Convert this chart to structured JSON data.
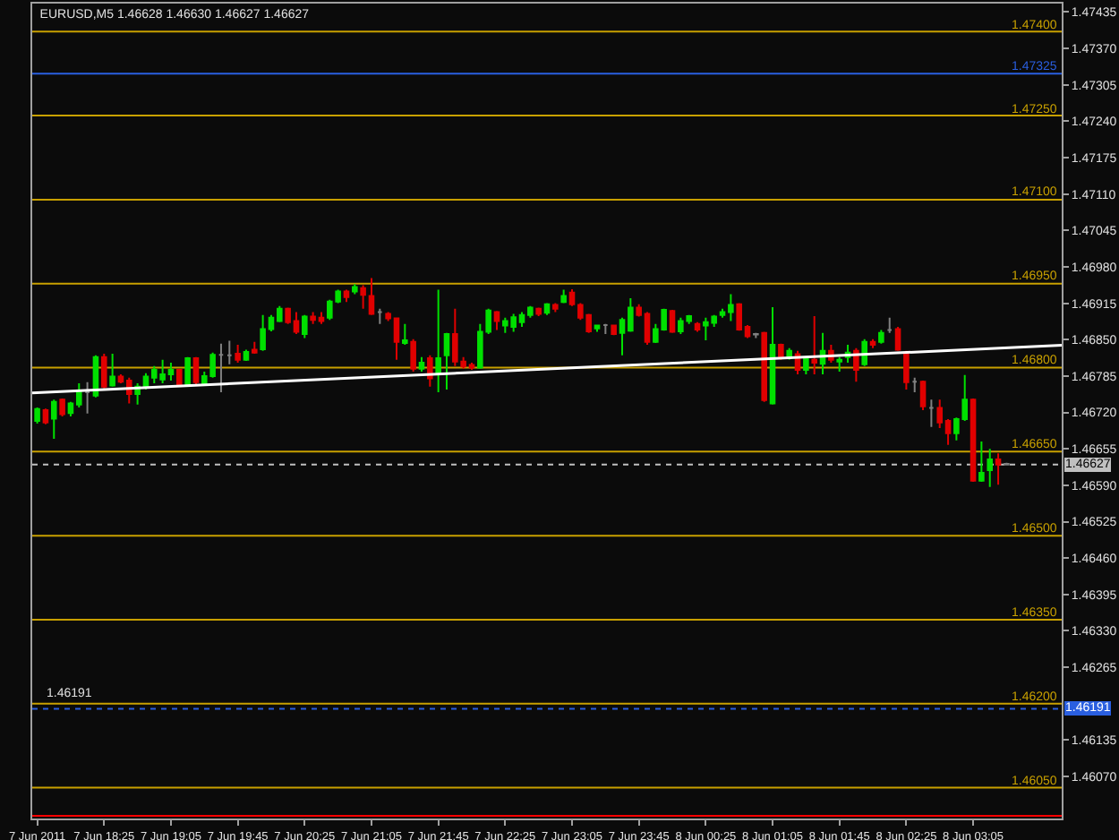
{
  "chart_data": {
    "type": "candlestick",
    "title": "EURUSD,M5 1.46628 1.46630 1.46627 1.46627",
    "x": [
      "2011-06-07T17:45",
      "2011-06-07T17:50",
      "2011-06-07T17:55",
      "2011-06-07T18:00",
      "2011-06-07T18:05",
      "2011-06-07T18:10",
      "2011-06-07T18:15",
      "2011-06-07T18:20",
      "2011-06-07T18:25",
      "2011-06-07T18:30",
      "2011-06-07T18:35",
      "2011-06-07T18:40",
      "2011-06-07T18:45",
      "2011-06-07T18:50",
      "2011-06-07T18:55",
      "2011-06-07T19:00",
      "2011-06-07T19:05",
      "2011-06-07T19:10",
      "2011-06-07T19:15",
      "2011-06-07T19:20",
      "2011-06-07T19:25",
      "2011-06-07T19:30",
      "2011-06-07T19:35",
      "2011-06-07T19:40",
      "2011-06-07T19:45",
      "2011-06-07T19:50",
      "2011-06-07T19:55",
      "2011-06-07T20:00",
      "2011-06-07T20:05",
      "2011-06-07T20:10",
      "2011-06-07T20:15",
      "2011-06-07T20:20",
      "2011-06-07T20:25",
      "2011-06-07T20:30",
      "2011-06-07T20:35",
      "2011-06-07T20:40",
      "2011-06-07T20:45",
      "2011-06-07T20:50",
      "2011-06-07T20:55",
      "2011-06-07T21:00",
      "2011-06-07T21:05",
      "2011-06-07T21:10",
      "2011-06-07T21:15",
      "2011-06-07T21:20",
      "2011-06-07T21:25",
      "2011-06-07T21:30",
      "2011-06-07T21:35",
      "2011-06-07T21:40",
      "2011-06-07T21:45",
      "2011-06-07T21:50",
      "2011-06-07T21:55",
      "2011-06-07T22:00",
      "2011-06-07T22:05",
      "2011-06-07T22:10",
      "2011-06-07T22:15",
      "2011-06-07T22:20",
      "2011-06-07T22:25",
      "2011-06-07T22:30",
      "2011-06-07T22:35",
      "2011-06-07T22:40",
      "2011-06-07T22:45",
      "2011-06-07T22:50",
      "2011-06-07T22:55",
      "2011-06-07T23:00",
      "2011-06-07T23:05",
      "2011-06-07T23:10",
      "2011-06-07T23:15",
      "2011-06-07T23:20",
      "2011-06-07T23:25",
      "2011-06-07T23:30",
      "2011-06-07T23:35",
      "2011-06-07T23:40",
      "2011-06-07T23:45",
      "2011-06-07T23:50",
      "2011-06-07T23:55",
      "2011-06-08T00:00",
      "2011-06-08T00:05",
      "2011-06-08T00:10",
      "2011-06-08T00:15",
      "2011-06-08T00:20",
      "2011-06-08T00:25",
      "2011-06-08T00:30",
      "2011-06-08T00:35",
      "2011-06-08T00:40",
      "2011-06-08T00:45",
      "2011-06-08T00:50",
      "2011-06-08T00:55",
      "2011-06-08T01:00",
      "2011-06-08T01:05",
      "2011-06-08T01:10",
      "2011-06-08T01:15",
      "2011-06-08T01:20",
      "2011-06-08T01:25",
      "2011-06-08T01:30",
      "2011-06-08T01:35",
      "2011-06-08T01:40",
      "2011-06-08T01:45",
      "2011-06-08T01:50",
      "2011-06-08T01:55",
      "2011-06-08T02:00",
      "2011-06-08T02:05",
      "2011-06-08T02:10",
      "2011-06-08T02:15",
      "2011-06-08T02:20",
      "2011-06-08T02:25",
      "2011-06-08T02:30",
      "2011-06-08T02:35",
      "2011-06-08T02:40",
      "2011-06-08T02:45",
      "2011-06-08T02:50",
      "2011-06-08T02:55",
      "2011-06-08T03:00",
      "2011-06-08T03:05",
      "2011-06-08T03:10",
      "2011-06-08T03:15",
      "2011-06-08T03:20",
      "2011-06-08T03:25"
    ],
    "ohlc": [
      [
        1.46705,
        1.46729,
        1.467,
        1.46726
      ],
      [
        1.46724,
        1.46727,
        1.46699,
        1.46702
      ],
      [
        1.46709,
        1.46743,
        1.46673,
        1.46739
      ],
      [
        1.46743,
        1.46745,
        1.46713,
        1.46717
      ],
      [
        1.46719,
        1.46739,
        1.46713,
        1.46736
      ],
      [
        1.46734,
        1.46772,
        1.46729,
        1.46756
      ],
      [
        1.46756,
        1.46774,
        1.46718,
        1.46756
      ],
      [
        1.4675,
        1.46822,
        1.46747,
        1.46819
      ],
      [
        1.46819,
        1.46825,
        1.46763,
        1.46766
      ],
      [
        1.46768,
        1.46825,
        1.46766,
        1.46784
      ],
      [
        1.46784,
        1.46788,
        1.46772,
        1.46775
      ],
      [
        1.46777,
        1.46782,
        1.46736,
        1.46753
      ],
      [
        1.46753,
        1.46772,
        1.46734,
        1.46766
      ],
      [
        1.46766,
        1.4679,
        1.46761,
        1.46784
      ],
      [
        1.46782,
        1.46803,
        1.46772,
        1.46796
      ],
      [
        1.46779,
        1.46814,
        1.46772,
        1.46788
      ],
      [
        1.46788,
        1.46809,
        1.46777,
        1.46796
      ],
      [
        1.46796,
        1.46798,
        1.46766,
        1.46769
      ],
      [
        1.46769,
        1.46819,
        1.46766,
        1.46817
      ],
      [
        1.46817,
        1.46819,
        1.4677,
        1.46774
      ],
      [
        1.46772,
        1.46793,
        1.46768,
        1.46785
      ],
      [
        1.46785,
        1.46827,
        1.46782,
        1.46823
      ],
      [
        1.46823,
        1.46843,
        1.46756,
        1.46823
      ],
      [
        1.46822,
        1.46848,
        1.46806,
        1.46822
      ],
      [
        1.46825,
        1.46841,
        1.46809,
        1.46814
      ],
      [
        1.46814,
        1.46832,
        1.46812,
        1.46828
      ],
      [
        1.46832,
        1.46846,
        1.46825,
        1.46827
      ],
      [
        1.46833,
        1.46894,
        1.4683,
        1.46869
      ],
      [
        1.46869,
        1.46894,
        1.46865,
        1.46889
      ],
      [
        1.46883,
        1.4691,
        1.46881,
        1.46905
      ],
      [
        1.46905,
        1.46907,
        1.46878,
        1.46881
      ],
      [
        1.46883,
        1.46899,
        1.4686,
        1.46864
      ],
      [
        1.4686,
        1.46894,
        1.46853,
        1.46891
      ],
      [
        1.46891,
        1.46899,
        1.46878,
        1.46885
      ],
      [
        1.46889,
        1.46899,
        1.46878,
        1.46883
      ],
      [
        1.46889,
        1.46921,
        1.46885,
        1.46918
      ],
      [
        1.46918,
        1.46939,
        1.46915,
        1.46936
      ],
      [
        1.46936,
        1.46939,
        1.46917,
        1.46926
      ],
      [
        1.46936,
        1.46949,
        1.46931,
        1.46944
      ],
      [
        1.46942,
        1.46947,
        1.46905,
        1.4693
      ],
      [
        1.46928,
        1.4696,
        1.46894,
        1.46896
      ],
      [
        1.46899,
        1.46905,
        1.46878,
        1.46899
      ],
      [
        1.46896,
        1.46899,
        1.46883,
        1.46888
      ],
      [
        1.46888,
        1.46889,
        1.46814,
        1.46846
      ],
      [
        1.46844,
        1.46878,
        1.46841,
        1.46849
      ],
      [
        1.46846,
        1.46851,
        1.46793,
        1.46798
      ],
      [
        1.46798,
        1.46819,
        1.46793,
        1.46809
      ],
      [
        1.46817,
        1.46822,
        1.46766,
        1.46781
      ],
      [
        1.4679,
        1.46939,
        1.46756,
        1.46817
      ],
      [
        1.46822,
        1.46862,
        1.46761,
        1.4686
      ],
      [
        1.4686,
        1.46905,
        1.46803,
        1.46811
      ],
      [
        1.46811,
        1.46819,
        1.46798,
        1.46802
      ],
      [
        1.46805,
        1.46809,
        1.46796,
        1.468
      ],
      [
        1.468,
        1.46878,
        1.46798,
        1.46864
      ],
      [
        1.46864,
        1.46905,
        1.4686,
        1.46902
      ],
      [
        1.46899,
        1.46901,
        1.46867,
        1.46883
      ],
      [
        1.46875,
        1.46889,
        1.46862,
        1.46883
      ],
      [
        1.46873,
        1.46896,
        1.46864,
        1.4689
      ],
      [
        1.46881,
        1.46899,
        1.46873,
        1.46894
      ],
      [
        1.46894,
        1.4691,
        1.46889,
        1.46907
      ],
      [
        1.46905,
        1.46907,
        1.46892,
        1.46896
      ],
      [
        1.46898,
        1.46915,
        1.46894,
        1.46913
      ],
      [
        1.46912,
        1.46915,
        1.46899,
        1.46905
      ],
      [
        1.46917,
        1.46939,
        1.46915,
        1.46928
      ],
      [
        1.46934,
        1.4694,
        1.4691,
        1.46913
      ],
      [
        1.46912,
        1.46915,
        1.46885,
        1.46889
      ],
      [
        1.46894,
        1.46896,
        1.46862,
        1.46865
      ],
      [
        1.4687,
        1.46876,
        1.46864,
        1.46875
      ],
      [
        1.46876,
        1.46878,
        1.4686,
        1.46876
      ],
      [
        1.46875,
        1.46877,
        1.46858,
        1.4686
      ],
      [
        1.46862,
        1.46889,
        1.46822,
        1.46885
      ],
      [
        1.46866,
        1.46924,
        1.46864,
        1.46907
      ],
      [
        1.46907,
        1.46913,
        1.46891,
        1.46894
      ],
      [
        1.46896,
        1.46899,
        1.46841,
        1.46846
      ],
      [
        1.46846,
        1.46878,
        1.46844,
        1.46869
      ],
      [
        1.46868,
        1.46905,
        1.46866,
        1.46903
      ],
      [
        1.46901,
        1.46903,
        1.46862,
        1.46864
      ],
      [
        1.46865,
        1.46889,
        1.4686,
        1.46883
      ],
      [
        1.46883,
        1.46894,
        1.46878,
        1.46892
      ],
      [
        1.46878,
        1.46881,
        1.46864,
        1.46868
      ],
      [
        1.46875,
        1.46889,
        1.46849,
        1.46881
      ],
      [
        1.4688,
        1.46894,
        1.46873,
        1.46891
      ],
      [
        1.46894,
        1.46905,
        1.46889,
        1.46899
      ],
      [
        1.46899,
        1.46931,
        1.46883,
        1.46912
      ],
      [
        1.46913,
        1.46915,
        1.46866,
        1.46868
      ],
      [
        1.46873,
        1.46876,
        1.46853,
        1.46856
      ],
      [
        1.4686,
        1.46862,
        1.46853,
        1.46859
      ],
      [
        1.46862,
        1.46864,
        1.46739,
        1.46742
      ],
      [
        1.46736,
        1.46908,
        1.46734,
        1.46841
      ],
      [
        1.46841,
        1.46843,
        1.46814,
        1.46817
      ],
      [
        1.46817,
        1.46835,
        1.46814,
        1.4683
      ],
      [
        1.46824,
        1.4683,
        1.46788,
        1.46796
      ],
      [
        1.46796,
        1.46819,
        1.46788,
        1.46816
      ],
      [
        1.46814,
        1.46892,
        1.46788,
        1.46809
      ],
      [
        1.46807,
        1.46862,
        1.46788,
        1.4683
      ],
      [
        1.4683,
        1.46841,
        1.46809,
        1.46814
      ],
      [
        1.46811,
        1.46819,
        1.46793,
        1.46814
      ],
      [
        1.46819,
        1.46841,
        1.46809,
        1.46827
      ],
      [
        1.4683,
        1.46835,
        1.46775,
        1.46796
      ],
      [
        1.46806,
        1.46851,
        1.46803,
        1.46846
      ],
      [
        1.46846,
        1.46851,
        1.46835,
        1.46841
      ],
      [
        1.46846,
        1.46867,
        1.46843,
        1.46862
      ],
      [
        1.46867,
        1.46889,
        1.46862,
        1.46867
      ],
      [
        1.46869,
        1.46873,
        1.4683,
        1.46832
      ],
      [
        1.46825,
        1.4683,
        1.46761,
        1.46774
      ],
      [
        1.46775,
        1.46782,
        1.46756,
        1.46775
      ],
      [
        1.46775,
        1.46777,
        1.46724,
        1.46731
      ],
      [
        1.46728,
        1.46743,
        1.46694,
        1.46728
      ],
      [
        1.46728,
        1.46743,
        1.46692,
        1.46702
      ],
      [
        1.46705,
        1.46708,
        1.46662,
        1.46683
      ],
      [
        1.46683,
        1.46711,
        1.4667,
        1.46708
      ],
      [
        1.46708,
        1.46787,
        1.46705,
        1.46743
      ],
      [
        1.46743,
        1.46745,
        1.46596,
        1.46598
      ],
      [
        1.46598,
        1.46668,
        1.46596,
        1.46612
      ],
      [
        1.46617,
        1.46655,
        1.46587,
        1.46636
      ],
      [
        1.46636,
        1.46647,
        1.46591,
        1.46627
      ],
      [
        1.46628,
        1.4663,
        1.46627,
        1.46627
      ]
    ],
    "colors": [
      "#00e000",
      "#e00000",
      "#00e000",
      "#e00000",
      "#00e000",
      "#00e000",
      "#808080",
      "#00e000",
      "#e00000",
      "#00e000",
      "#e00000",
      "#e00000",
      "#00e000",
      "#00e000",
      "#00e000",
      "#00e000",
      "#00e000",
      "#e00000",
      "#00e000",
      "#e00000",
      "#00e000",
      "#00e000",
      "#808080",
      "#808080",
      "#e00000",
      "#00e000",
      "#e00000",
      "#00e000",
      "#00e000",
      "#00e000",
      "#e00000",
      "#e00000",
      "#00e000",
      "#e00000",
      "#e00000",
      "#00e000",
      "#00e000",
      "#e00000",
      "#00e000",
      "#e00000",
      "#e00000",
      "#808080",
      "#e00000",
      "#e00000",
      "#00e000",
      "#e00000",
      "#00e000",
      "#e00000",
      "#00e000",
      "#00e000",
      "#e00000",
      "#e00000",
      "#e00000",
      "#00e000",
      "#00e000",
      "#e00000",
      "#00e000",
      "#00e000",
      "#00e000",
      "#00e000",
      "#e00000",
      "#00e000",
      "#e00000",
      "#00e000",
      "#e00000",
      "#e00000",
      "#e00000",
      "#00e000",
      "#808080",
      "#e00000",
      "#00e000",
      "#00e000",
      "#e00000",
      "#e00000",
      "#00e000",
      "#00e000",
      "#e00000",
      "#00e000",
      "#00e000",
      "#e00000",
      "#00e000",
      "#00e000",
      "#00e000",
      "#00e000",
      "#e00000",
      "#e00000",
      "#808080",
      "#e00000",
      "#00e000",
      "#e00000",
      "#00e000",
      "#e00000",
      "#00e000",
      "#e00000",
      "#00e000",
      "#e00000",
      "#00e000",
      "#00e000",
      "#e00000",
      "#00e000",
      "#e00000",
      "#00e000",
      "#808080",
      "#e00000",
      "#e00000",
      "#808080",
      "#e00000",
      "#808080",
      "#e00000",
      "#e00000",
      "#00e000",
      "#00e000",
      "#e00000",
      "#00e000",
      "#00e000",
      "#e00000",
      "#808080"
    ],
    "series": [
      {
        "type": "line",
        "color": "#ffffff",
        "x": [
          "2011-06-07T17:42",
          "2011-06-08T03:58"
        ],
        "values": [
          1.46755,
          1.4684
        ]
      }
    ],
    "xlim": [
      "2011-06-07T17:42",
      "2011-06-08T03:58"
    ],
    "xticks": [
      {
        "value": "2011-06-07T17:45",
        "label": "7 Jun 2011"
      },
      {
        "value": "2011-06-07T18:25",
        "label": "7 Jun 18:25"
      },
      {
        "value": "2011-06-07T19:05",
        "label": "7 Jun 19:05"
      },
      {
        "value": "2011-06-07T19:45",
        "label": "7 Jun 19:45"
      },
      {
        "value": "2011-06-07T20:25",
        "label": "7 Jun 20:25"
      },
      {
        "value": "2011-06-07T21:05",
        "label": "7 Jun 21:05"
      },
      {
        "value": "2011-06-07T21:45",
        "label": "7 Jun 21:45"
      },
      {
        "value": "2011-06-07T22:25",
        "label": "7 Jun 22:25"
      },
      {
        "value": "2011-06-07T23:05",
        "label": "7 Jun 23:05"
      },
      {
        "value": "2011-06-07T23:45",
        "label": "7 Jun 23:45"
      },
      {
        "value": "2011-06-08T00:25",
        "label": "8 Jun 00:25"
      },
      {
        "value": "2011-06-08T01:05",
        "label": "8 Jun 01:05"
      },
      {
        "value": "2011-06-08T01:45",
        "label": "8 Jun 01:45"
      },
      {
        "value": "2011-06-08T02:25",
        "label": "8 Jun 02:25"
      },
      {
        "value": "2011-06-08T03:05",
        "label": "8 Jun 03:05"
      }
    ],
    "ylim": [
      1.45995,
      1.4745
    ],
    "yticks": [
      1.47435,
      {
        "value": 1.4737,
        "label": "1.47370"
      },
      1.47305,
      {
        "value": 1.4724,
        "label": "1.47240"
      },
      1.47175,
      {
        "value": 1.4711,
        "label": "1.47110"
      },
      1.47045,
      {
        "value": 1.4698,
        "label": "1.46980"
      },
      1.46915,
      {
        "value": 1.4685,
        "label": "1.46850"
      },
      1.46785,
      {
        "value": 1.4672,
        "label": "1.46720"
      },
      1.46655,
      {
        "value": 1.4659,
        "label": "1.46590"
      },
      1.46525,
      {
        "value": 1.4646,
        "label": "1.46460"
      },
      1.46395,
      {
        "value": 1.4633,
        "label": "1.46330"
      },
      1.46265,
      1.46135,
      {
        "value": 1.4607,
        "label": "1.46070"
      }
    ],
    "ref_lines": [
      {
        "axis": "y",
        "value": 1.474,
        "label": "1.47400",
        "color": "#c8a000"
      },
      {
        "axis": "y",
        "value": 1.47325,
        "label": "1.47325",
        "color": "#2a5fe0"
      },
      {
        "axis": "y",
        "value": 1.4725,
        "label": "1.47250",
        "color": "#c8a000"
      },
      {
        "axis": "y",
        "value": 1.471,
        "label": "1.47100",
        "color": "#c8a000"
      },
      {
        "axis": "y",
        "value": 1.4695,
        "label": "1.46950",
        "color": "#c8a000"
      },
      {
        "axis": "y",
        "value": 1.468,
        "label": "1.46800",
        "color": "#c8a000"
      },
      {
        "axis": "y",
        "value": 1.4665,
        "label": "1.46650",
        "color": "#c8a000"
      },
      {
        "axis": "y",
        "value": 1.465,
        "label": "1.46500",
        "color": "#c8a000"
      },
      {
        "axis": "y",
        "value": 1.4635,
        "label": "1.46350",
        "color": "#c8a000"
      },
      {
        "axis": "y",
        "value": 1.462,
        "label": "1.46200",
        "color": "#c8a000"
      },
      {
        "axis": "y",
        "value": 1.4605,
        "label": "1.46050",
        "color": "#c8a000"
      },
      {
        "axis": "y",
        "value": 1.46627,
        "label": "1.46627",
        "color": "#c0c0c0",
        "line_style": "dotted"
      },
      {
        "axis": "y",
        "value": 1.46191,
        "label": "1.46191",
        "color": "#2a5fe0",
        "line_style": "dotted"
      },
      {
        "axis": "y",
        "value": 1.46,
        "color": "#ff0000"
      }
    ],
    "annotations": [
      {
        "text": "1.46191",
        "x": "2011-06-07T17:45",
        "y": 1.46191
      }
    ]
  }
}
